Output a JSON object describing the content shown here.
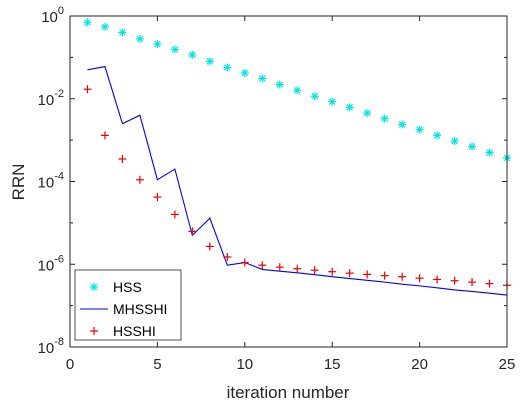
{
  "chart_data": {
    "type": "line",
    "xlabel": "iteration number",
    "ylabel": "RRN",
    "xlim": [
      0,
      25
    ],
    "ylim": [
      1e-08,
      1
    ],
    "yscale": "log",
    "x_ticks": [
      "0",
      "5",
      "10",
      "15",
      "20",
      "25"
    ],
    "y_ticks": [
      {
        "base": "10",
        "exp": "0"
      },
      {
        "base": "10",
        "exp": "-2"
      },
      {
        "base": "10",
        "exp": "-4"
      },
      {
        "base": "10",
        "exp": "-6"
      },
      {
        "base": "10",
        "exp": "-8"
      }
    ],
    "legend_position": "bottom-left",
    "grid": false,
    "series": [
      {
        "name": "HSS",
        "style": "star-markers",
        "color": "#00e5e5",
        "x": [
          1,
          2,
          3,
          4,
          5,
          6,
          7,
          8,
          9,
          10,
          11,
          12,
          13,
          14,
          15,
          16,
          17,
          18,
          19,
          20,
          21,
          22,
          23,
          24,
          25
        ],
        "y": [
          0.7,
          0.55,
          0.4,
          0.28,
          0.21,
          0.155,
          0.115,
          0.08,
          0.057,
          0.042,
          0.031,
          0.022,
          0.016,
          0.0115,
          0.0085,
          0.0062,
          0.0045,
          0.0033,
          0.0024,
          0.0018,
          0.0013,
          0.00095,
          0.0007,
          0.0005,
          0.00037
        ]
      },
      {
        "name": "MHSSHI",
        "style": "line",
        "color": "#0000ee",
        "x": [
          1,
          2,
          3,
          4,
          5,
          6,
          7,
          8,
          9,
          10,
          11,
          12,
          13,
          14,
          15,
          16,
          17,
          18,
          19,
          20,
          21,
          22,
          23,
          24,
          25
        ],
        "y": [
          0.05,
          0.06,
          0.0025,
          0.004,
          0.00011,
          0.0002,
          5e-06,
          1.3e-05,
          9.5e-07,
          1.1e-06,
          7.5e-07,
          6.8e-07,
          6.2e-07,
          5.6e-07,
          5e-07,
          4.5e-07,
          4.1e-07,
          3.7e-07,
          3.3e-07,
          3e-07,
          2.7e-07,
          2.4e-07,
          2.2e-07,
          2e-07,
          1.8e-07
        ]
      },
      {
        "name": "HSSHI",
        "style": "plus-markers",
        "color": "#ee0000",
        "x": [
          1,
          2,
          3,
          4,
          5,
          6,
          7,
          8,
          9,
          10,
          11,
          12,
          13,
          14,
          15,
          16,
          17,
          18,
          19,
          20,
          21,
          22,
          23,
          24,
          25
        ],
        "y": [
          0.017,
          0.0013,
          0.00035,
          0.00011,
          4.2e-05,
          1.6e-05,
          6.2e-06,
          2.7e-06,
          1.5e-06,
          1.1e-06,
          9.5e-07,
          8.5e-07,
          7.8e-07,
          7.2e-07,
          6.6e-07,
          6.1e-07,
          5.7e-07,
          5.3e-07,
          5e-07,
          4.6e-07,
          4.3e-07,
          4e-07,
          3.7e-07,
          3.4e-07,
          3.1e-07
        ]
      }
    ]
  }
}
